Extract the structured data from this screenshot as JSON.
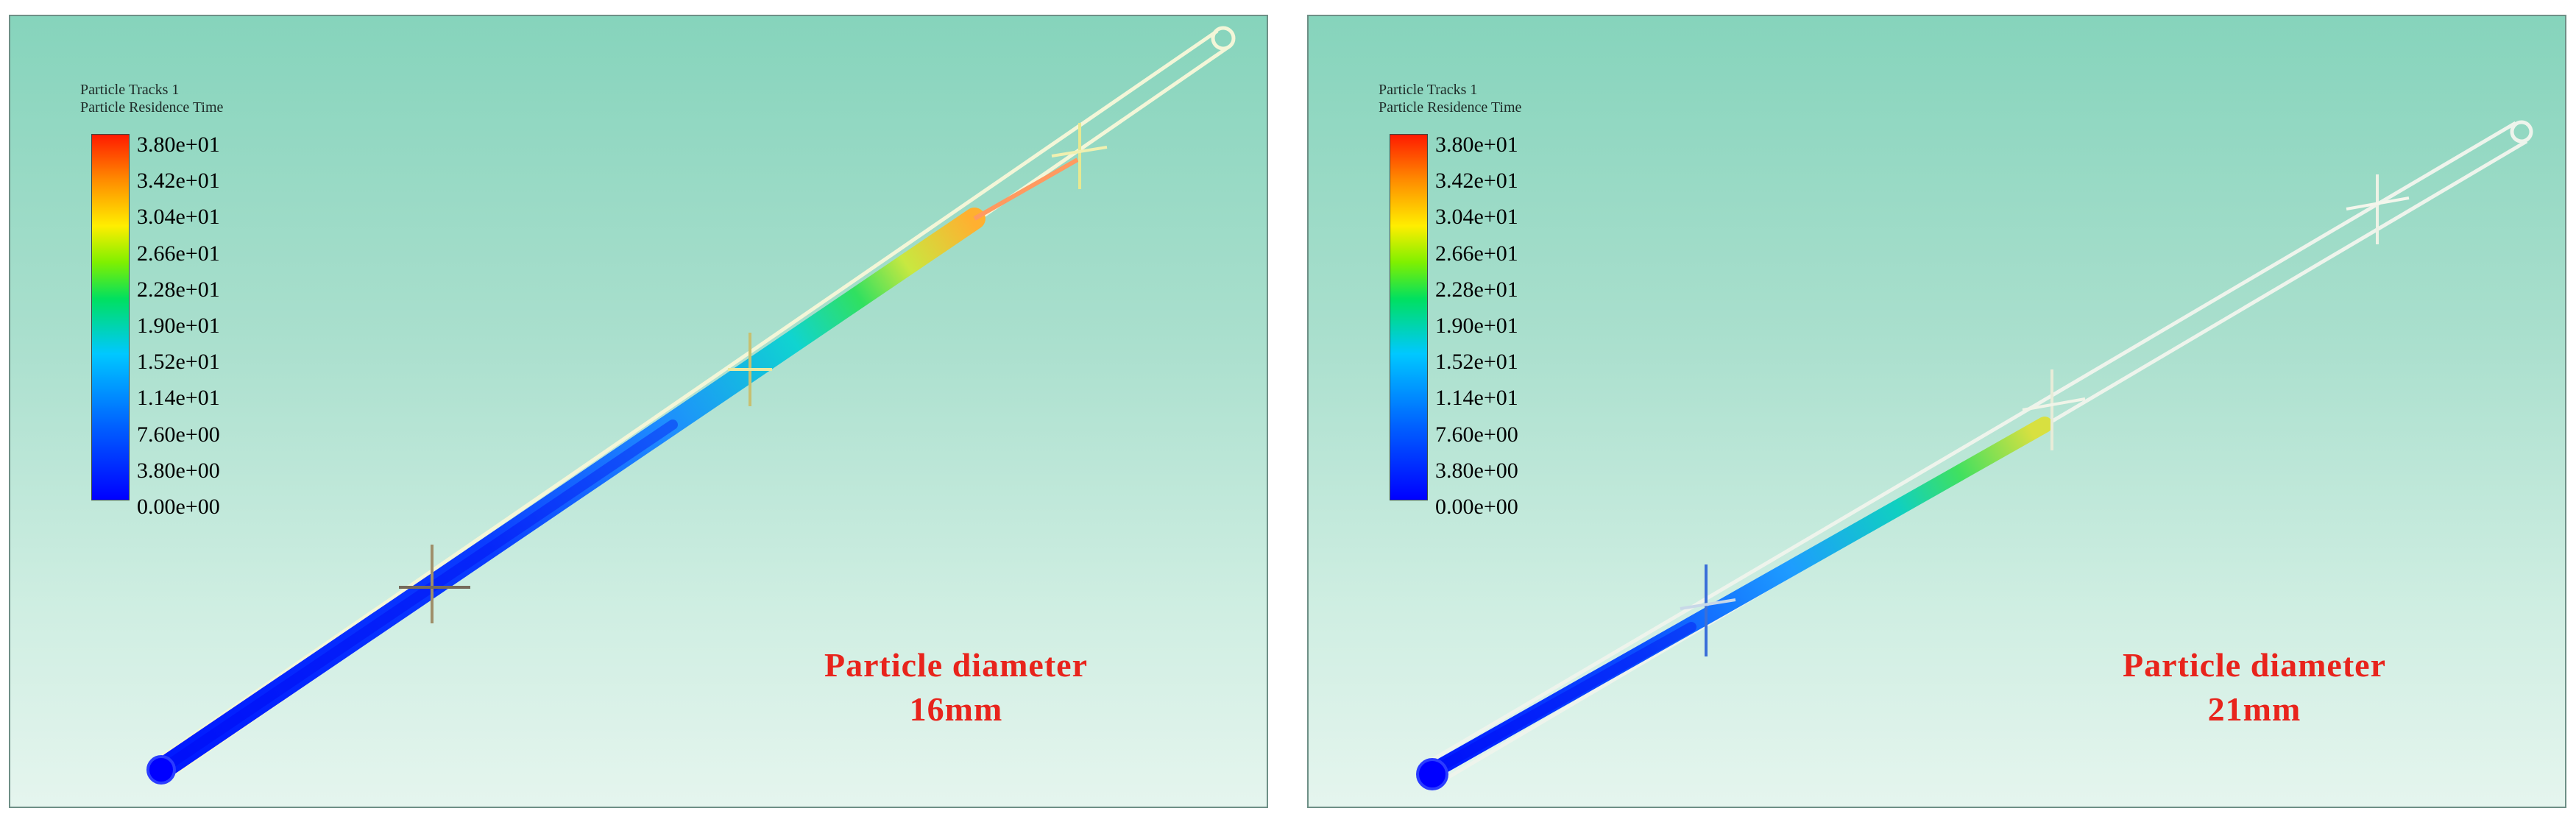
{
  "panels": [
    {
      "legend": {
        "title_line1": "Particle Tracks 1",
        "title_line2": "Particle Residence Time",
        "ticks": [
          "3.80e+01",
          "3.42e+01",
          "3.04e+01",
          "2.66e+01",
          "2.28e+01",
          "1.90e+01",
          "1.52e+01",
          "1.14e+01",
          "7.60e+00",
          "3.80e+00",
          "0.00e+00"
        ]
      },
      "caption_line1": "Particle diameter",
      "caption_line2": "16mm"
    },
    {
      "legend": {
        "title_line1": "Particle Tracks 1",
        "title_line2": "Particle Residence Time",
        "ticks": [
          "3.80e+01",
          "3.42e+01",
          "3.04e+01",
          "2.66e+01",
          "2.28e+01",
          "1.90e+01",
          "1.52e+01",
          "1.14e+01",
          "7.60e+00",
          "3.80e+00",
          "0.00e+00"
        ]
      },
      "caption_line1": "Particle diameter",
      "caption_line2": "21mm"
    }
  ],
  "colors": {
    "background_top": "#86d4bc",
    "background_bottom": "#e5f5ee",
    "caption": "#e8241c",
    "colormap_min": "#0000ff",
    "colormap_max": "#ff1a00"
  }
}
